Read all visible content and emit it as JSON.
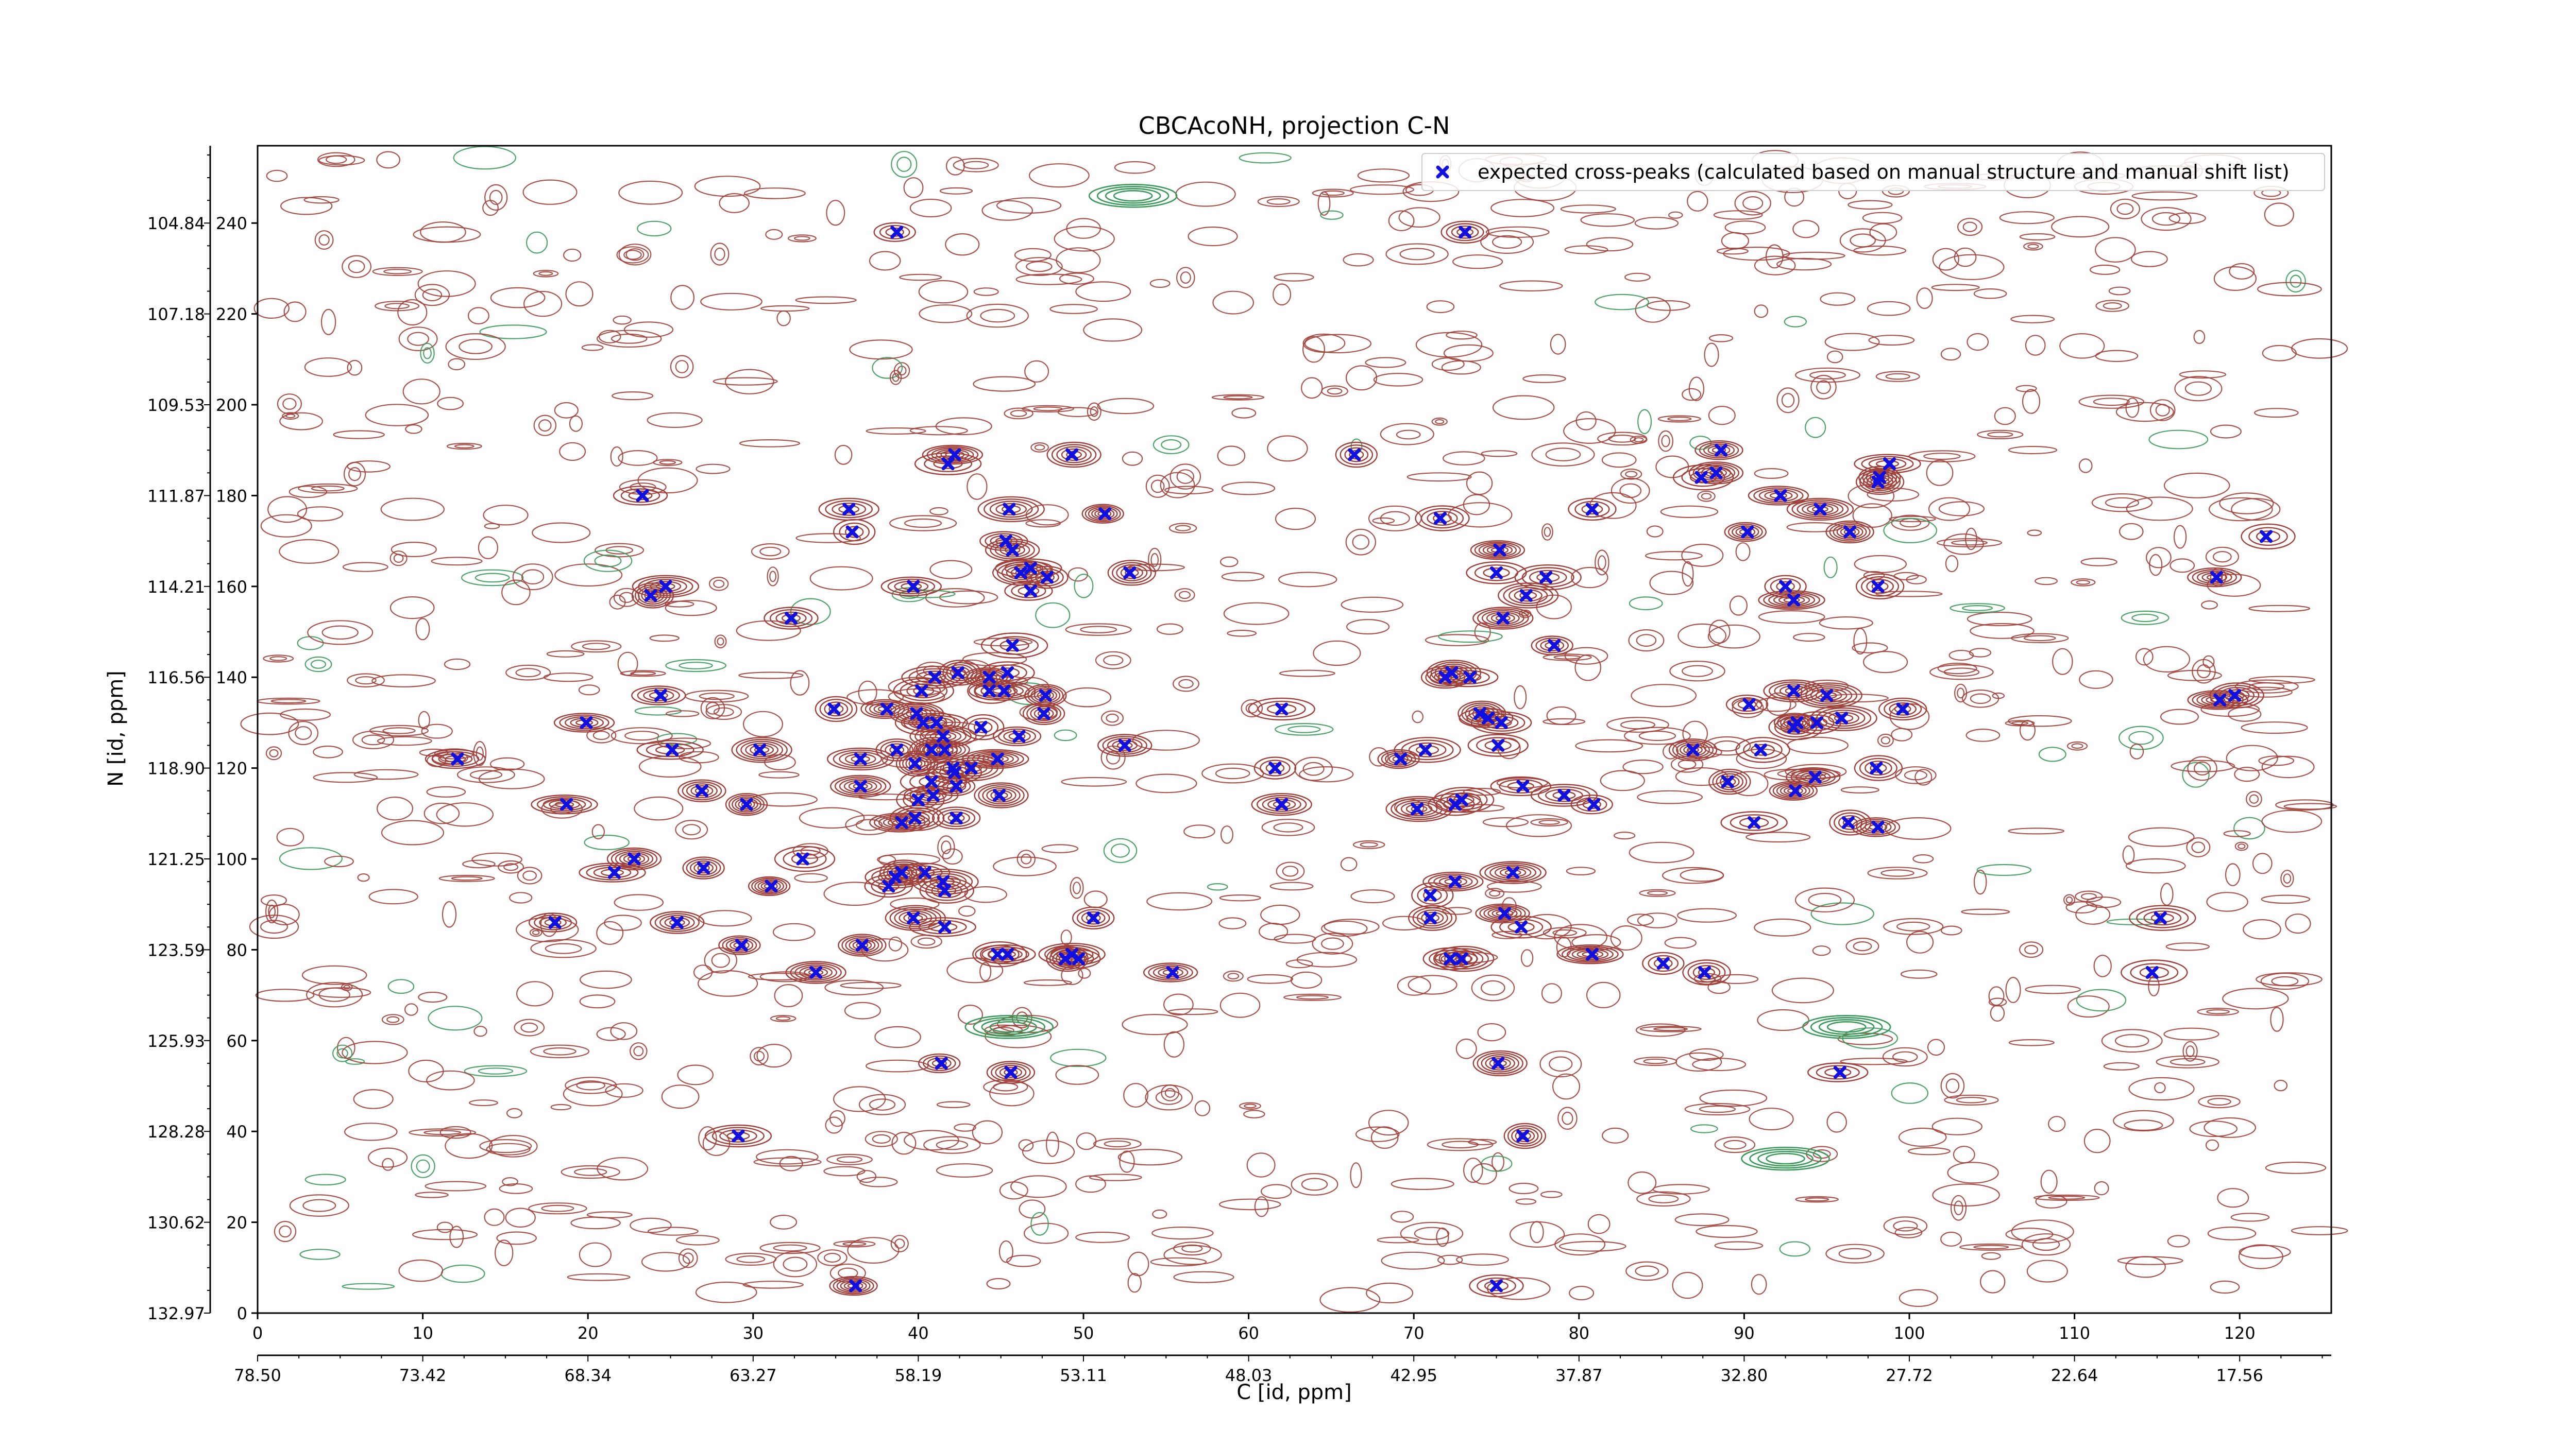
{
  "chart_data": {
    "type": "scatter",
    "title": "CBCAcoNH, projection C-N",
    "xlabel": "C [id, ppm]",
    "ylabel": "N [id, ppm]",
    "x_index_range": [
      0,
      127
    ],
    "y_index_range": [
      0,
      255
    ],
    "x_index_ticks": [
      "0",
      "10",
      "20",
      "30",
      "40",
      "50",
      "60",
      "70",
      "80",
      "90",
      "100",
      "110",
      "120"
    ],
    "x_ppm_ticks": [
      "78.50",
      "73.42",
      "68.34",
      "63.27",
      "58.19",
      "53.11",
      "48.03",
      "42.95",
      "37.87",
      "32.80",
      "27.72",
      "22.64",
      "17.56"
    ],
    "y_index_ticks": [
      "0",
      "20",
      "40",
      "60",
      "80",
      "100",
      "120",
      "140",
      "160",
      "180",
      "200",
      "220",
      "240"
    ],
    "y_ppm_ticks": [
      "132.97",
      "130.62",
      "128.28",
      "125.93",
      "123.59",
      "121.25",
      "118.90",
      "116.56",
      "114.21",
      "111.87",
      "109.53",
      "107.18",
      "104.84"
    ],
    "grid": false,
    "legend_position": "top-right",
    "colors": {
      "peak": "#1010e0",
      "positive_contour": "#a0403a",
      "negative_contour": "#3a9a5a"
    },
    "series": [
      {
        "name": "expected cross-peaks (calculated based on manual structure and manual shift list)",
        "marker": "x",
        "points": [
          [
            38.7,
            238
          ],
          [
            73.1,
            238
          ],
          [
            49.3,
            189
          ],
          [
            42.2,
            189
          ],
          [
            41.8,
            187
          ],
          [
            66.4,
            189
          ],
          [
            88.6,
            190
          ],
          [
            88.3,
            185
          ],
          [
            87.4,
            184
          ],
          [
            98.8,
            187
          ],
          [
            98.2,
            184
          ],
          [
            98.1,
            183
          ],
          [
            23.3,
            180
          ],
          [
            35.8,
            177
          ],
          [
            45.5,
            177
          ],
          [
            51.3,
            176
          ],
          [
            80.8,
            177
          ],
          [
            71.6,
            175
          ],
          [
            92.2,
            180
          ],
          [
            94.6,
            177
          ],
          [
            36.0,
            172
          ],
          [
            45.3,
            170
          ],
          [
            45.7,
            168
          ],
          [
            46.2,
            163
          ],
          [
            46.8,
            164
          ],
          [
            47.8,
            162
          ],
          [
            52.8,
            163
          ],
          [
            75.2,
            168
          ],
          [
            75.0,
            163
          ],
          [
            78.0,
            162
          ],
          [
            90.2,
            172
          ],
          [
            96.4,
            172
          ],
          [
            121.6,
            171
          ],
          [
            39.7,
            160
          ],
          [
            24.7,
            160
          ],
          [
            23.8,
            158
          ],
          [
            46.8,
            159
          ],
          [
            32.3,
            153
          ],
          [
            76.8,
            158
          ],
          [
            93.0,
            157
          ],
          [
            92.5,
            160
          ],
          [
            98.1,
            160
          ],
          [
            118.6,
            162
          ],
          [
            75.4,
            153
          ],
          [
            45.7,
            147
          ],
          [
            78.5,
            147
          ],
          [
            71.9,
            140
          ],
          [
            72.3,
            141
          ],
          [
            73.4,
            140
          ],
          [
            41.0,
            140
          ],
          [
            42.4,
            141
          ],
          [
            44.3,
            140
          ],
          [
            45.4,
            141
          ],
          [
            40.2,
            137
          ],
          [
            45.2,
            137
          ],
          [
            47.7,
            136
          ],
          [
            44.3,
            137
          ],
          [
            24.4,
            136
          ],
          [
            93.0,
            137
          ],
          [
            95.0,
            136
          ],
          [
            90.3,
            134
          ],
          [
            99.6,
            133
          ],
          [
            119.7,
            136
          ],
          [
            118.8,
            135
          ],
          [
            62.0,
            133
          ],
          [
            34.9,
            133
          ],
          [
            38.1,
            133
          ],
          [
            39.9,
            132
          ],
          [
            40.3,
            130
          ],
          [
            41.1,
            130
          ],
          [
            47.6,
            132
          ],
          [
            74.0,
            132
          ],
          [
            74.5,
            131
          ],
          [
            75.3,
            130
          ],
          [
            95.9,
            131
          ],
          [
            93.2,
            130
          ],
          [
            94.4,
            130
          ],
          [
            93.0,
            129
          ],
          [
            19.9,
            130
          ],
          [
            41.5,
            127
          ],
          [
            43.8,
            129
          ],
          [
            46.1,
            127
          ],
          [
            52.5,
            125
          ],
          [
            30.4,
            124
          ],
          [
            25.1,
            124
          ],
          [
            38.7,
            124
          ],
          [
            40.8,
            124
          ],
          [
            41.6,
            124
          ],
          [
            75.1,
            125
          ],
          [
            70.7,
            124
          ],
          [
            69.2,
            122
          ],
          [
            86.9,
            124
          ],
          [
            91.0,
            124
          ],
          [
            12.1,
            122
          ],
          [
            36.5,
            122
          ],
          [
            39.8,
            121
          ],
          [
            42.1,
            120
          ],
          [
            42.2,
            119
          ],
          [
            43.2,
            120
          ],
          [
            44.8,
            122
          ],
          [
            61.6,
            120
          ],
          [
            98.0,
            120
          ],
          [
            94.3,
            118
          ],
          [
            36.5,
            116
          ],
          [
            40.8,
            117
          ],
          [
            42.3,
            116
          ],
          [
            26.9,
            115
          ],
          [
            44.9,
            114
          ],
          [
            76.6,
            116
          ],
          [
            79.1,
            114
          ],
          [
            89.0,
            117
          ],
          [
            93.1,
            115
          ],
          [
            72.5,
            112
          ],
          [
            72.9,
            113
          ],
          [
            18.7,
            112
          ],
          [
            29.6,
            112
          ],
          [
            40.0,
            113
          ],
          [
            40.9,
            114
          ],
          [
            62.0,
            112
          ],
          [
            70.2,
            111
          ],
          [
            80.9,
            112
          ],
          [
            42.3,
            109
          ],
          [
            39.8,
            109
          ],
          [
            39.0,
            108
          ],
          [
            90.6,
            108
          ],
          [
            96.3,
            108
          ],
          [
            98.1,
            107
          ],
          [
            22.8,
            100
          ],
          [
            33.0,
            100
          ],
          [
            21.6,
            97
          ],
          [
            27.0,
            98
          ],
          [
            39.0,
            97
          ],
          [
            40.4,
            97
          ],
          [
            38.6,
            96
          ],
          [
            41.5,
            95
          ],
          [
            31.1,
            94
          ],
          [
            38.2,
            94
          ],
          [
            41.6,
            93
          ],
          [
            72.5,
            95
          ],
          [
            76.0,
            97
          ],
          [
            71.0,
            92
          ],
          [
            18.0,
            86
          ],
          [
            25.4,
            86
          ],
          [
            39.7,
            87
          ],
          [
            41.6,
            85
          ],
          [
            50.6,
            87
          ],
          [
            71.0,
            87
          ],
          [
            75.5,
            88
          ],
          [
            76.5,
            85
          ],
          [
            115.2,
            87
          ],
          [
            29.3,
            81
          ],
          [
            36.6,
            81
          ],
          [
            44.8,
            79
          ],
          [
            45.4,
            79
          ],
          [
            49.3,
            79
          ],
          [
            48.9,
            78
          ],
          [
            49.7,
            78
          ],
          [
            72.2,
            78
          ],
          [
            72.9,
            78
          ],
          [
            80.8,
            79
          ],
          [
            85.1,
            77
          ],
          [
            87.6,
            75
          ],
          [
            55.4,
            75
          ],
          [
            33.8,
            75
          ],
          [
            114.7,
            75
          ],
          [
            41.4,
            55
          ],
          [
            45.6,
            53
          ],
          [
            75.1,
            55
          ],
          [
            95.8,
            53
          ],
          [
            29.1,
            39
          ],
          [
            76.6,
            39
          ],
          [
            36.2,
            6
          ],
          [
            75.0,
            6
          ]
        ]
      }
    ]
  }
}
